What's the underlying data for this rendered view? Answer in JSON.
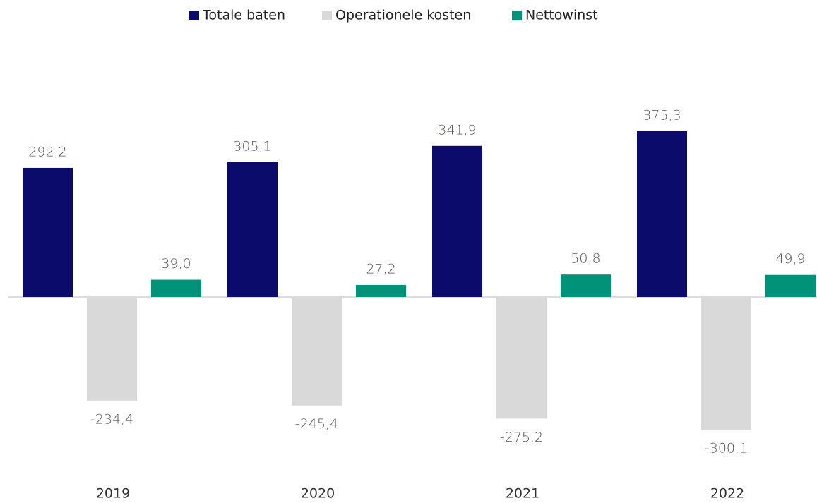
{
  "chart_data": {
    "type": "bar",
    "categories": [
      "2019",
      "2020",
      "2021",
      "2022"
    ],
    "series": [
      {
        "name": "Totale baten",
        "color": "#0b0b6b",
        "values": [
          292.2,
          305.1,
          341.9,
          375.3
        ],
        "value_labels": [
          "292,2",
          "305,1",
          "341,9",
          "375,3"
        ]
      },
      {
        "name": "Operationele kosten",
        "color": "#d9d9d9",
        "values": [
          -234.4,
          -245.4,
          -275.2,
          -300.1
        ],
        "value_labels": [
          "-234,4",
          "-245,4",
          "-275,2",
          "-300,1"
        ]
      },
      {
        "name": "Nettowinst",
        "color": "#00937a",
        "values": [
          39.0,
          27.2,
          50.8,
          49.9
        ],
        "value_labels": [
          "39,0",
          "27,2",
          "50,8",
          "49,9"
        ]
      }
    ],
    "legend": "top"
  }
}
